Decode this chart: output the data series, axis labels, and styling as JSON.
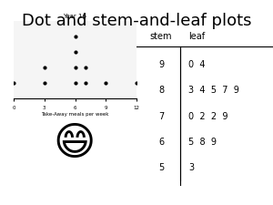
{
  "title": "Dot and stem-and-leaf plots",
  "title_fontsize": 13,
  "background_color": "#ffffff",
  "dot_plot": {
    "title": "Year 16",
    "xlabel": "Take-Away meals per week",
    "xlim": [
      0,
      12
    ],
    "dots": [
      0,
      3,
      3,
      6,
      6,
      6,
      6,
      7,
      7,
      9,
      12
    ]
  },
  "stem_leaf": {
    "headers": [
      "stem",
      "leaf"
    ],
    "rows": [
      {
        "stem": "9",
        "leaf": "0  4"
      },
      {
        "stem": "8",
        "leaf": "3  4  5  7  9"
      },
      {
        "stem": "7",
        "leaf": "0  2  2  9"
      },
      {
        "stem": "6",
        "leaf": "5  8  9"
      },
      {
        "stem": "5",
        "leaf": "3"
      }
    ]
  }
}
